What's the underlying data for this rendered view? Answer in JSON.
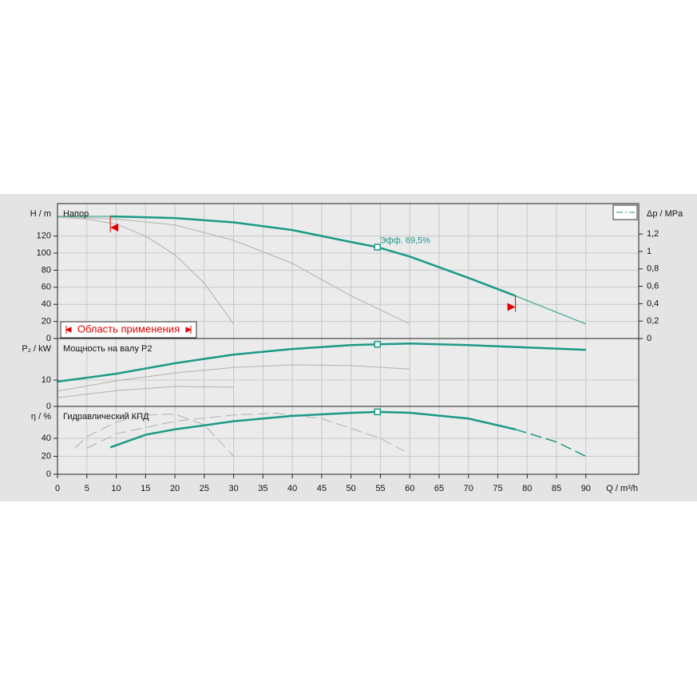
{
  "chart_data": [
    {
      "type": "line",
      "title": "Напор",
      "ylabel": "H / m",
      "y2label": "Δp / MPa",
      "xlim": [
        0,
        99
      ],
      "ylim": [
        0,
        158
      ],
      "yticks": [
        0,
        20,
        40,
        60,
        80,
        100,
        120
      ],
      "y2lim": [
        0,
        1.55
      ],
      "y2ticks": [
        0,
        {
          "value": 0.2,
          "label": "0,2"
        },
        {
          "value": 0.4,
          "label": "0,4"
        },
        {
          "value": 0.6,
          "label": "0,6"
        },
        {
          "value": 0.8,
          "label": "0,8"
        },
        {
          "value": 1,
          "label": "1"
        },
        {
          "value": 1.2,
          "label": "1,2"
        }
      ],
      "grid": true,
      "series": [
        {
          "color": "#b0b0b0",
          "width": 1,
          "x": [
            0,
            5,
            10,
            15,
            20,
            25,
            30
          ],
          "values": [
            142,
            140,
            134,
            120,
            98,
            65,
            17
          ]
        },
        {
          "color": "#b0b0b0",
          "width": 1,
          "x": [
            0,
            10,
            20,
            30,
            40,
            50,
            60
          ],
          "values": [
            143,
            140,
            133,
            115,
            88,
            50,
            17
          ]
        },
        {
          "color": "#1a9a86",
          "width": 1,
          "x": [
            0,
            9,
            20,
            30,
            40,
            50,
            54.5,
            60,
            70,
            78,
            90
          ],
          "values": [
            143,
            143,
            141,
            136,
            127,
            113,
            107,
            96,
            71,
            50,
            17
          ]
        },
        {
          "color": "#1a9a86",
          "width": 2.5,
          "x": [
            9,
            20,
            30,
            40,
            50,
            54.5,
            60,
            70,
            78
          ],
          "values": [
            143,
            141,
            136,
            127,
            113,
            107,
            96,
            71,
            50
          ]
        }
      ],
      "marker": {
        "x": 54.5,
        "y": 107,
        "label": "Эфф.  69,5%"
      },
      "range": [
        9,
        78
      ],
      "range_label": "Область применения"
    },
    {
      "type": "line",
      "title": "Мощность на валу P2",
      "ylabel": "P₂ / kW",
      "xlim": [
        0,
        99
      ],
      "ylim": [
        0,
        25.8
      ],
      "yticks": [
        0,
        10
      ],
      "grid": true,
      "series": [
        {
          "color": "#b0b0b0",
          "width": 1,
          "x": [
            0,
            10,
            20,
            30,
            40,
            50,
            60
          ],
          "values": [
            5.8,
            9.7,
            12.7,
            14.8,
            15.8,
            15.5,
            14.2
          ]
        },
        {
          "color": "#b0b0b0",
          "width": 1,
          "x": [
            0,
            10,
            20,
            30
          ],
          "values": [
            3.3,
            6,
            7.6,
            7.3
          ]
        },
        {
          "color": "#1a9a86",
          "width": 2.5,
          "x": [
            0,
            10,
            20,
            30,
            40,
            50,
            54.5,
            60,
            70,
            80,
            90
          ],
          "values": [
            9.4,
            12.4,
            16.4,
            19.7,
            21.8,
            23.3,
            23.6,
            23.9,
            23.3,
            22.4,
            21.5
          ]
        }
      ],
      "marker": {
        "x": 54.5,
        "y": 23.6
      }
    },
    {
      "type": "line",
      "title": "Гидравлический КПД",
      "ylabel": "η / %",
      "xlabel": "Q / m³/h",
      "xlim": [
        0,
        99
      ],
      "ylim": [
        0,
        75.6
      ],
      "yticks": [
        0,
        20,
        40
      ],
      "xticks": [
        0,
        5,
        10,
        15,
        20,
        25,
        30,
        35,
        40,
        45,
        50,
        55,
        60,
        65,
        70,
        75,
        80,
        85,
        90
      ],
      "grid": true,
      "series": [
        {
          "color": "#b0b0b0",
          "width": 1,
          "dash": true,
          "x": [
            3,
            5,
            10,
            15,
            20,
            25,
            30
          ],
          "values": [
            29,
            42,
            58,
            66,
            67,
            55,
            20
          ]
        },
        {
          "color": "#b0b0b0",
          "width": 1,
          "dash": true,
          "x": [
            5,
            10,
            20,
            30,
            37,
            45,
            55,
            59
          ],
          "values": [
            29,
            45,
            59,
            66,
            68,
            62,
            40,
            26
          ]
        },
        {
          "color": "#1a9a86",
          "width": 2.5,
          "x": [
            9,
            15,
            20,
            30,
            40,
            50,
            54.5,
            60,
            70,
            78
          ],
          "values": [
            30,
            44,
            50,
            59,
            65,
            68.4,
            69.5,
            68.5,
            62,
            50
          ]
        },
        {
          "color": "#1a9a86",
          "width": 1.5,
          "dash": true,
          "x": [
            78,
            85,
            90
          ],
          "values": [
            50,
            36,
            20
          ]
        }
      ],
      "marker": {
        "x": 54.5,
        "y": 69.5
      }
    }
  ]
}
